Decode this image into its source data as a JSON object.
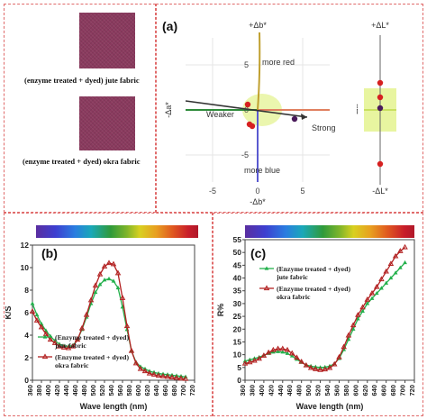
{
  "left_panel": {
    "jute_caption": "(enzyme treated + dyed) jute fabric",
    "okra_caption": "(enzyme treated + dyed) okra fabric",
    "swatch_color": "#8a3a5e"
  },
  "colors": {
    "jute": "#22b04b",
    "okra": "#b22020",
    "frame": "#e06a6a"
  },
  "chart_data": [
    {
      "type": "scatter",
      "panel_label": "(a)",
      "xlim": [
        -8,
        8
      ],
      "ylim": [
        -8,
        8
      ],
      "x_ticks": [
        "-5",
        "0",
        "5"
      ],
      "y_ticks": [
        "5",
        "0",
        "-5"
      ],
      "axis_labels": {
        "top": "+Δb*",
        "bottom": "-Δb*",
        "left": "-Δa*",
        "right": "+Δa*"
      },
      "annotations": {
        "red": "more red",
        "blue": "more blue",
        "weaker": "Weaker",
        "strong": "Strong"
      },
      "points": [
        {
          "x": -1.1,
          "y": 0.6,
          "color": "#d62020"
        },
        {
          "x": -0.9,
          "y": -1.6,
          "color": "#d62020"
        },
        {
          "x": -0.6,
          "y": -1.8,
          "color": "#d62020"
        },
        {
          "x": 4.1,
          "y": -1.0,
          "color": "#4a1a5a"
        }
      ]
    },
    {
      "type": "scatter",
      "axis_labels": {
        "top": "+ΔL*",
        "bottom": "-ΔL*"
      },
      "ylim": [
        -8,
        8
      ],
      "points": [
        {
          "y": 3.0,
          "color": "#d62020"
        },
        {
          "y": 1.4,
          "color": "#d62020"
        },
        {
          "y": 0.2,
          "color": "#4a1a5a"
        },
        {
          "y": -6.0,
          "color": "#d62020"
        }
      ]
    },
    {
      "type": "line",
      "panel_label": "(b)",
      "xlabel": "Wave length (nm)",
      "ylabel": "K/S",
      "xlim": [
        360,
        720
      ],
      "ylim": [
        0,
        12
      ],
      "x": [
        360,
        370,
        380,
        390,
        400,
        410,
        420,
        430,
        440,
        450,
        460,
        470,
        480,
        490,
        500,
        510,
        520,
        530,
        540,
        550,
        560,
        570,
        580,
        590,
        600,
        610,
        620,
        630,
        640,
        650,
        660,
        670,
        680,
        690,
        700
      ],
      "series": [
        {
          "name": "(Enzyme treated + dyed) jute fabric",
          "values": [
            6.8,
            5.8,
            5.0,
            4.4,
            3.9,
            3.5,
            3.2,
            3.05,
            3.0,
            3.1,
            3.6,
            4.5,
            5.6,
            6.8,
            7.8,
            8.5,
            8.9,
            9.0,
            8.8,
            8.2,
            6.5,
            4.5,
            2.6,
            1.6,
            1.2,
            1.0,
            0.8,
            0.7,
            0.6,
            0.55,
            0.5,
            0.45,
            0.4,
            0.35,
            0.3
          ]
        },
        {
          "name": "(Enzyme treated + dyed) okra fabric",
          "values": [
            6.1,
            5.3,
            4.7,
            4.1,
            3.6,
            3.3,
            3.0,
            2.9,
            2.85,
            3.0,
            3.6,
            4.6,
            5.8,
            7.1,
            8.4,
            9.4,
            10.1,
            10.4,
            10.3,
            9.5,
            7.3,
            4.8,
            2.6,
            1.5,
            1.0,
            0.8,
            0.6,
            0.5,
            0.4,
            0.35,
            0.3,
            0.25,
            0.2,
            0.15,
            0.12
          ]
        }
      ],
      "x_ticks": [
        "360",
        "380",
        "400",
        "420",
        "440",
        "460",
        "480",
        "500",
        "520",
        "540",
        "560",
        "580",
        "600",
        "620",
        "640",
        "660",
        "680",
        "700",
        "720"
      ],
      "y_ticks": [
        "0",
        "2",
        "4",
        "6",
        "8",
        "10",
        "12"
      ],
      "legend": "lower-left"
    },
    {
      "type": "line",
      "panel_label": "(c)",
      "xlabel": "Wave length (nm)",
      "ylabel": "R%",
      "xlim": [
        360,
        720
      ],
      "ylim": [
        0,
        55
      ],
      "x": [
        360,
        370,
        380,
        390,
        400,
        410,
        420,
        430,
        440,
        450,
        460,
        470,
        480,
        490,
        500,
        510,
        520,
        530,
        540,
        550,
        560,
        570,
        580,
        590,
        600,
        610,
        620,
        630,
        640,
        650,
        660,
        670,
        680,
        690,
        700
      ],
      "series": [
        {
          "name": "(Enzyme treated + dyed) jute fabric",
          "values": [
            7.5,
            8,
            8.5,
            9,
            9.8,
            10.5,
            11,
            11.2,
            11,
            10.5,
            9.5,
            8.2,
            7,
            6,
            5.5,
            5.2,
            5,
            5.1,
            5.5,
            6.5,
            8.5,
            12,
            16,
            20,
            24,
            27,
            30,
            32,
            34,
            36,
            38,
            40,
            42,
            44,
            46
          ]
        },
        {
          "name": "(Enzyme treated + dyed) okra fabric",
          "values": [
            6.5,
            7,
            7.6,
            8.4,
            9.6,
            10.8,
            11.8,
            12.3,
            12.3,
            11.8,
            10.5,
            8.8,
            7.2,
            5.8,
            4.8,
            4.3,
            4.0,
            4.2,
            4.8,
            6.2,
            9,
            13,
            17.5,
            21.5,
            25.5,
            28.5,
            31.5,
            34,
            36.5,
            39.5,
            42.5,
            45.5,
            48.5,
            50.5,
            52
          ]
        }
      ],
      "x_ticks": [
        "360",
        "380",
        "400",
        "420",
        "440",
        "460",
        "480",
        "500",
        "520",
        "540",
        "560",
        "580",
        "600",
        "620",
        "640",
        "660",
        "680",
        "700",
        "720"
      ],
      "y_ticks": [
        "0",
        "5",
        "10",
        "15",
        "20",
        "25",
        "30",
        "35",
        "40",
        "45",
        "50",
        "55"
      ],
      "legend": "upper-left"
    }
  ]
}
